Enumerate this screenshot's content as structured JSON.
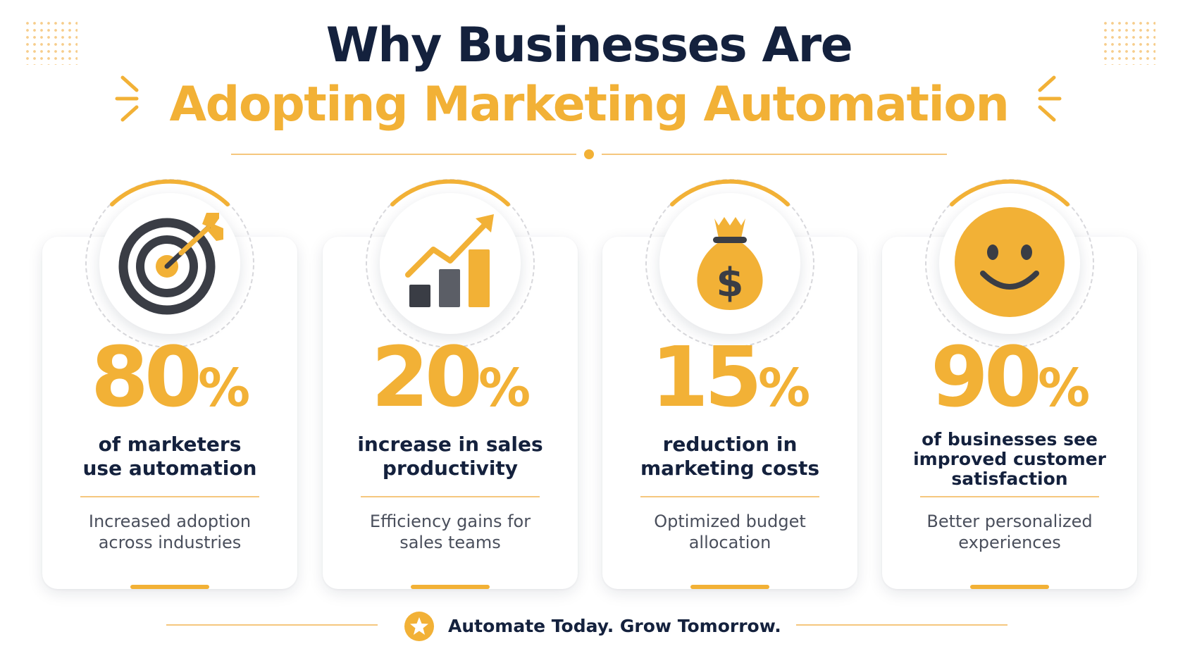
{
  "title": {
    "line1": "Why Businesses Are",
    "line2": "Adopting Marketing Automation"
  },
  "colors": {
    "accent": "#f2b136",
    "navy": "#14213d",
    "dark_gray": "#3a3d45",
    "card_bg": "#ffffff"
  },
  "cards": [
    {
      "icon": "target-icon",
      "stat_number": "80",
      "stat_suffix": "%",
      "heading_line1": "of marketers",
      "heading_line2": "use automation",
      "description_line1": "Increased adoption",
      "description_line2": "across industries"
    },
    {
      "icon": "growth-chart-icon",
      "stat_number": "20",
      "stat_suffix": "%",
      "heading_line1": "increase in sales",
      "heading_line2": "productivity",
      "description_line1": "Efficiency gains for",
      "description_line2": "sales teams"
    },
    {
      "icon": "money-bag-icon",
      "stat_number": "15",
      "stat_suffix": "%",
      "heading_line1": "reduction in",
      "heading_line2": "marketing costs",
      "description_line1": "Optimized budget",
      "description_line2": "allocation"
    },
    {
      "icon": "smiley-face-icon",
      "stat_number": "90",
      "stat_suffix": "%",
      "heading_line1": "of businesses see",
      "heading_line2": "improved customer",
      "heading_line3": "satisfaction",
      "description_line1": "Better personalized",
      "description_line2": "experiences"
    }
  ],
  "footer": {
    "icon": "star-icon",
    "tagline": "Automate Today. Grow Tomorrow."
  }
}
